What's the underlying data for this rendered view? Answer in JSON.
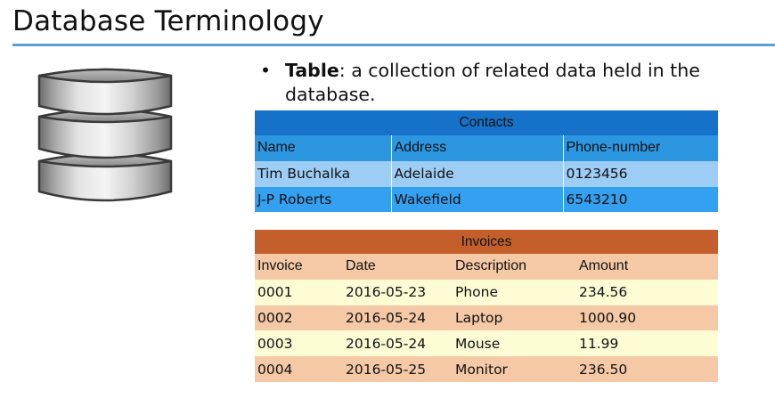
{
  "slide": {
    "title": "Database Terminology",
    "accent_color": "#5aa0d8",
    "icon": "database-icon"
  },
  "bullet": {
    "marker": "•",
    "term": "Table",
    "text": ": a collection of related data held in the database."
  },
  "contacts": {
    "caption": "Contacts",
    "columns": [
      "Name",
      "Address",
      "Phone-number"
    ],
    "rows": [
      [
        "Tim Buchalka",
        "Adelaide",
        "0123456"
      ],
      [
        "J-P Roberts",
        "Wakefield",
        "6543210"
      ]
    ],
    "colors": {
      "caption": "#1672c8",
      "header": "#2d96e0",
      "row_light": "#9dccf4",
      "row_dark": "#34a0f0"
    }
  },
  "invoices": {
    "caption": "Invoices",
    "columns": [
      "Invoice",
      "Date",
      "Description",
      "Amount"
    ],
    "rows": [
      [
        "0001",
        "2016-05-23",
        "Phone",
        "234.56"
      ],
      [
        "0002",
        "2016-05-24",
        "Laptop",
        "1000.90"
      ],
      [
        "0003",
        "2016-05-24",
        "Mouse",
        "11.99"
      ],
      [
        "0004",
        "2016-05-25",
        "Monitor",
        "236.50"
      ]
    ],
    "colors": {
      "caption": "#c45f2c",
      "header": "#f5c9a6",
      "row_light": "#fefcd4",
      "row_dark": "#f5c9a6"
    }
  }
}
